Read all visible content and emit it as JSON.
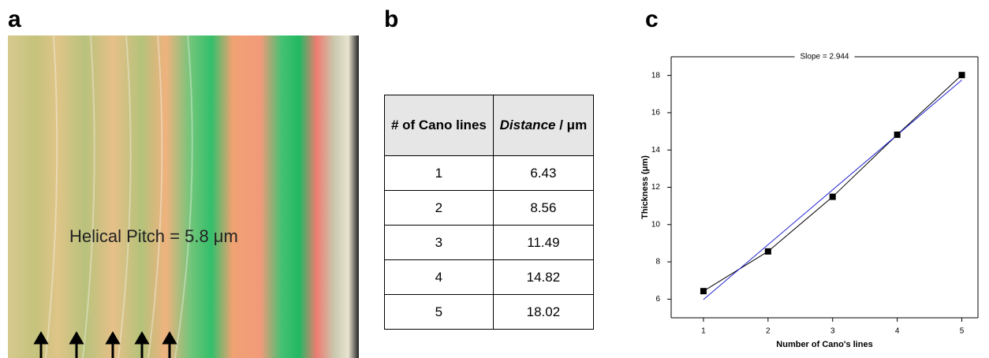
{
  "panels": {
    "a": {
      "letter": "a",
      "annotation": "Helical Pitch = 5.8 μm"
    },
    "b": {
      "letter": "b",
      "table": {
        "header": [
          "# of Cano lines",
          "Distance",
          "/ μm"
        ],
        "rows": [
          [
            1,
            6.43
          ],
          [
            2,
            8.56
          ],
          [
            3,
            11.49
          ],
          [
            4,
            14.82
          ],
          [
            5,
            18.02
          ]
        ]
      }
    },
    "c": {
      "letter": "c"
    }
  },
  "chart_data": {
    "type": "scatter",
    "x_label": "Number of Cano's lines",
    "y_label": "Thickness (μm)",
    "x": [
      1,
      2,
      3,
      4,
      5
    ],
    "values": [
      6.43,
      8.56,
      11.49,
      14.82,
      18.02
    ],
    "color": "#000000",
    "connect": true,
    "fit": {
      "slope": 2.944,
      "label": "Slope = 2.944",
      "color": "#2020d0"
    },
    "xlim": [
      0.5,
      5.25
    ],
    "xticks": [
      1,
      2,
      3,
      4,
      5
    ],
    "ylim": [
      5,
      19
    ],
    "yticks": [
      6,
      8,
      10,
      12,
      14,
      16,
      18
    ]
  }
}
